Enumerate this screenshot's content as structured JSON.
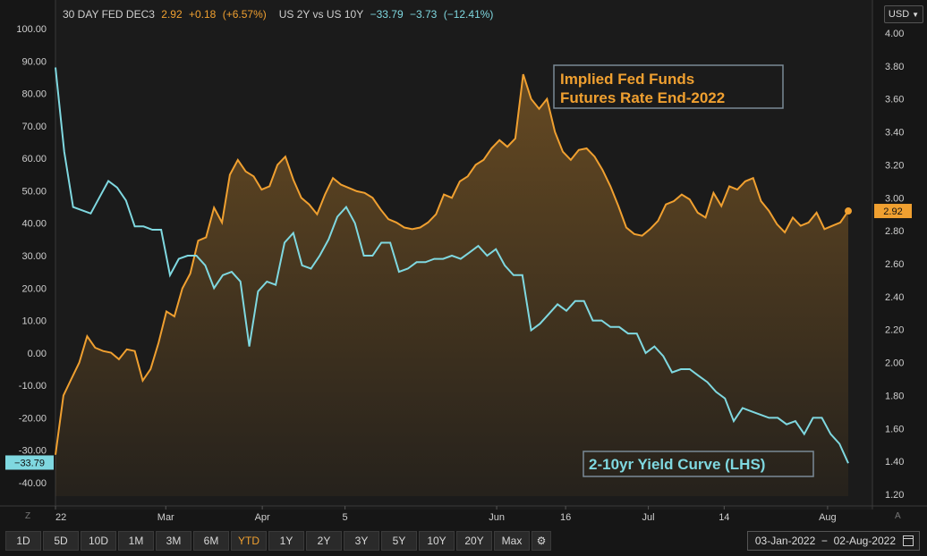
{
  "legend": {
    "series1_name": "30 DAY FED DEC3",
    "series1_last": "2.92",
    "series1_change": "+0.18",
    "series1_pct": "(+6.57%)",
    "series2_name": "US 2Y vs US 10Y",
    "series2_last": "−33.79",
    "series2_change": "−3.73",
    "series2_pct": "(−12.41%)"
  },
  "currency": "USD",
  "corner_left": "Z",
  "corner_right": "A",
  "toolbar": {
    "ranges": [
      "1D",
      "5D",
      "10D",
      "1M",
      "3M",
      "6M",
      "YTD",
      "1Y",
      "2Y",
      "3Y",
      "5Y",
      "10Y",
      "20Y",
      "Max"
    ],
    "active": "YTD"
  },
  "date_range": "03-Jan-2022  −  02-Aug-2022",
  "colors": {
    "fed": "#f0a030",
    "curve": "#7fd8e0",
    "background": "#161616"
  },
  "chart_data": {
    "type": "line",
    "title": "",
    "x_tick_labels": [
      "22",
      "Mar",
      "Apr",
      "5",
      "Jun",
      "16",
      "Jul",
      "14",
      "Aug"
    ],
    "x_tick_index": [
      0,
      16,
      30,
      42,
      64,
      74,
      86,
      97,
      112
    ],
    "y_left": {
      "min": -40,
      "max": 100,
      "ticks": [
        "100.00",
        "90.00",
        "80.00",
        "70.00",
        "60.00",
        "50.00",
        "40.00",
        "30.00",
        "20.00",
        "10.00",
        "0.00",
        "-10.00",
        "-20.00",
        "-30.00",
        "-40.00"
      ]
    },
    "y_right": {
      "min": 1.2,
      "max": 4.0,
      "ticks": [
        "4.00",
        "3.80",
        "3.60",
        "3.40",
        "3.20",
        "3.00",
        "2.80",
        "2.60",
        "2.40",
        "2.20",
        "2.00",
        "1.80",
        "1.60",
        "1.40",
        "1.20"
      ]
    },
    "annotations": [
      {
        "name": "fed-annotation",
        "lines": [
          "Implied Fed Funds",
          "Futures Rate End-2022"
        ]
      },
      {
        "name": "curve-annotation",
        "lines": [
          "2-10yr Yield Curve (LHS)"
        ]
      }
    ],
    "last_labels": {
      "fed": "2.92",
      "curve": "−33.79"
    },
    "series": [
      {
        "name": "30 DAY FED DEC3",
        "axis": "right",
        "values": [
          1.44,
          1.8,
          1.9,
          2.0,
          2.16,
          2.09,
          2.07,
          2.06,
          2.02,
          2.08,
          2.07,
          1.89,
          1.96,
          2.12,
          2.31,
          2.28,
          2.45,
          2.54,
          2.74,
          2.76,
          2.94,
          2.85,
          3.14,
          3.23,
          3.16,
          3.13,
          3.05,
          3.07,
          3.2,
          3.25,
          3.11,
          3.0,
          2.96,
          2.9,
          3.02,
          3.12,
          3.08,
          3.06,
          3.04,
          3.03,
          3.0,
          2.93,
          2.87,
          2.85,
          2.82,
          2.81,
          2.82,
          2.85,
          2.9,
          3.02,
          3.0,
          3.1,
          3.13,
          3.2,
          3.23,
          3.3,
          3.35,
          3.31,
          3.36,
          3.75,
          3.6,
          3.54,
          3.6,
          3.4,
          3.28,
          3.23,
          3.29,
          3.3,
          3.25,
          3.17,
          3.07,
          2.95,
          2.82,
          2.78,
          2.77,
          2.81,
          2.86,
          2.96,
          2.98,
          3.02,
          2.99,
          2.91,
          2.88,
          3.03,
          2.95,
          3.07,
          3.05,
          3.1,
          3.12,
          2.98,
          2.92,
          2.84,
          2.79,
          2.88,
          2.83,
          2.85,
          2.91,
          2.81,
          2.83,
          2.85,
          2.92
        ],
        "x_start_index": 0,
        "x_end_index": 115
      },
      {
        "name": "US 2Y vs US 10Y",
        "axis": "left",
        "values": [
          88,
          62,
          45,
          44,
          43,
          48,
          53,
          51,
          47,
          39,
          39,
          38,
          38,
          24,
          29,
          30,
          30,
          27,
          20,
          24,
          25,
          22,
          2,
          19,
          22,
          21,
          34,
          37,
          27,
          26,
          30,
          35,
          42,
          45,
          40,
          30,
          30,
          34,
          34,
          25,
          26,
          28,
          28,
          29,
          29,
          30,
          29,
          31,
          33,
          30,
          32,
          27,
          24,
          24,
          7,
          9,
          12,
          15,
          13,
          16,
          16,
          10,
          10,
          8,
          8,
          6,
          6,
          0,
          2,
          -1,
          -6,
          -5,
          -5,
          -7,
          -9,
          -12,
          -14,
          -21,
          -17,
          -18,
          -19,
          -20,
          -20,
          -22,
          -21,
          -25,
          -20,
          -20,
          -25,
          -28,
          -34
        ],
        "x_start_index": 0,
        "x_end_index": 115
      }
    ]
  }
}
